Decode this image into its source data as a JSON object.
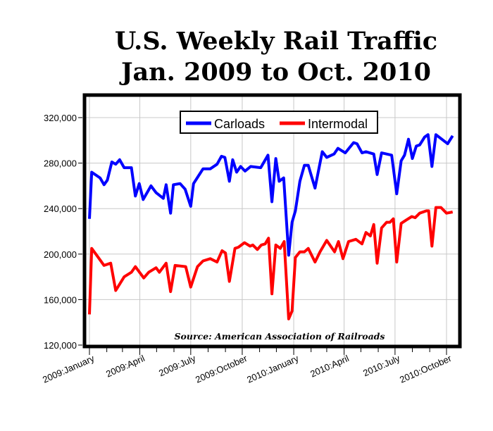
{
  "chart_data": {
    "type": "line",
    "title_lines": [
      "U.S. Weekly Rail Traffic",
      "Jan. 2009 to Oct. 2010"
    ],
    "xlabel": "",
    "ylabel": "",
    "ylim": [
      120000,
      340000
    ],
    "yticks": [
      120000,
      160000,
      200000,
      240000,
      280000,
      320000
    ],
    "ytick_labels": [
      "120,000",
      "160,000",
      "200,000",
      "240,000",
      "280,000",
      "320,000"
    ],
    "xticks": [
      "2009-01-01",
      "2009-04-01",
      "2009-07-01",
      "2009-10-01",
      "2010-01-01",
      "2010-04-01",
      "2010-07-01",
      "2010-10-01"
    ],
    "xtick_labels": [
      "2009:January",
      "2009:April",
      "2009:July",
      "2009:October",
      "2010:January",
      "2010:April",
      "2010:July",
      "2010:October"
    ],
    "grid": true,
    "legend_position": "top-center",
    "annotation": "Source: American Association of Railroads",
    "series": [
      {
        "name": "Carloads",
        "color": "#0000ff",
        "points": [
          [
            "2009-01-01",
            231000
          ],
          [
            "2009-01-05",
            272000
          ],
          [
            "2009-01-20",
            267000
          ],
          [
            "2009-01-27",
            261000
          ],
          [
            "2009-02-02",
            265000
          ],
          [
            "2009-02-10",
            281000
          ],
          [
            "2009-02-17",
            279000
          ],
          [
            "2009-02-24",
            283000
          ],
          [
            "2009-03-04",
            276000
          ],
          [
            "2009-03-17",
            276000
          ],
          [
            "2009-03-24",
            251000
          ],
          [
            "2009-03-31",
            262000
          ],
          [
            "2009-04-07",
            248000
          ],
          [
            "2009-04-21",
            260000
          ],
          [
            "2009-04-30",
            254000
          ],
          [
            "2009-05-13",
            249000
          ],
          [
            "2009-05-18",
            261000
          ],
          [
            "2009-05-26",
            236000
          ],
          [
            "2009-05-31",
            261000
          ],
          [
            "2009-06-12",
            262000
          ],
          [
            "2009-06-21",
            257000
          ],
          [
            "2009-07-01",
            242000
          ],
          [
            "2009-07-06",
            262000
          ],
          [
            "2009-07-23",
            275000
          ],
          [
            "2009-08-05",
            275000
          ],
          [
            "2009-08-17",
            279000
          ],
          [
            "2009-08-25",
            286000
          ],
          [
            "2009-08-31",
            285000
          ],
          [
            "2009-09-08",
            264000
          ],
          [
            "2009-09-14",
            283000
          ],
          [
            "2009-09-21",
            272000
          ],
          [
            "2009-09-28",
            277000
          ],
          [
            "2009-10-06",
            273000
          ],
          [
            "2009-10-16",
            277000
          ],
          [
            "2009-11-03",
            276000
          ],
          [
            "2009-11-16",
            287000
          ],
          [
            "2009-11-23",
            246000
          ],
          [
            "2009-11-30",
            284000
          ],
          [
            "2009-12-06",
            264000
          ],
          [
            "2009-12-14",
            267000
          ],
          [
            "2009-12-23",
            199000
          ],
          [
            "2009-12-29",
            228000
          ],
          [
            "2010-01-04",
            238000
          ],
          [
            "2010-01-12",
            264000
          ],
          [
            "2010-01-20",
            278000
          ],
          [
            "2010-01-27",
            278000
          ],
          [
            "2010-02-08",
            258000
          ],
          [
            "2010-02-21",
            290000
          ],
          [
            "2010-03-01",
            285000
          ],
          [
            "2010-03-14",
            288000
          ],
          [
            "2010-03-21",
            293000
          ],
          [
            "2010-04-03",
            289000
          ],
          [
            "2010-04-18",
            298000
          ],
          [
            "2010-04-24",
            297000
          ],
          [
            "2010-05-03",
            289000
          ],
          [
            "2010-05-10",
            290000
          ],
          [
            "2010-05-24",
            288000
          ],
          [
            "2010-05-30",
            270000
          ],
          [
            "2010-06-07",
            289000
          ],
          [
            "2010-06-25",
            287000
          ],
          [
            "2010-07-04",
            253000
          ],
          [
            "2010-07-12",
            282000
          ],
          [
            "2010-07-18",
            287000
          ],
          [
            "2010-07-25",
            301000
          ],
          [
            "2010-08-01",
            284000
          ],
          [
            "2010-08-08",
            295000
          ],
          [
            "2010-08-14",
            296000
          ],
          [
            "2010-08-23",
            303000
          ],
          [
            "2010-08-29",
            305000
          ],
          [
            "2010-09-05",
            277000
          ],
          [
            "2010-09-12",
            305000
          ],
          [
            "2010-10-03",
            297000
          ],
          [
            "2010-10-12",
            304000
          ]
        ]
      },
      {
        "name": "Intermodal",
        "color": "#ff0000",
        "points": [
          [
            "2009-01-01",
            147000
          ],
          [
            "2009-01-05",
            205000
          ],
          [
            "2009-01-14",
            199000
          ],
          [
            "2009-01-27",
            190000
          ],
          [
            "2009-02-08",
            192000
          ],
          [
            "2009-02-17",
            168000
          ],
          [
            "2009-03-04",
            180000
          ],
          [
            "2009-03-17",
            184000
          ],
          [
            "2009-03-24",
            189000
          ],
          [
            "2009-04-08",
            179000
          ],
          [
            "2009-04-17",
            184000
          ],
          [
            "2009-04-30",
            188000
          ],
          [
            "2009-05-06",
            184000
          ],
          [
            "2009-05-18",
            192000
          ],
          [
            "2009-05-26",
            167000
          ],
          [
            "2009-06-03",
            190000
          ],
          [
            "2009-06-22",
            189000
          ],
          [
            "2009-07-01",
            171000
          ],
          [
            "2009-07-13",
            189000
          ],
          [
            "2009-07-23",
            194000
          ],
          [
            "2009-08-05",
            196000
          ],
          [
            "2009-08-17",
            193000
          ],
          [
            "2009-08-26",
            203000
          ],
          [
            "2009-09-01",
            201000
          ],
          [
            "2009-09-08",
            176000
          ],
          [
            "2009-09-18",
            205000
          ],
          [
            "2009-09-24",
            206000
          ],
          [
            "2009-10-05",
            210000
          ],
          [
            "2009-10-15",
            207000
          ],
          [
            "2009-10-20",
            208000
          ],
          [
            "2009-10-28",
            204000
          ],
          [
            "2009-11-04",
            208000
          ],
          [
            "2009-11-11",
            209000
          ],
          [
            "2009-11-17",
            214000
          ],
          [
            "2009-11-23",
            165000
          ],
          [
            "2009-11-30",
            208000
          ],
          [
            "2009-12-08",
            205000
          ],
          [
            "2009-12-15",
            211000
          ],
          [
            "2009-12-23",
            143000
          ],
          [
            "2009-12-29",
            150000
          ],
          [
            "2010-01-04",
            197000
          ],
          [
            "2010-01-12",
            202000
          ],
          [
            "2010-01-20",
            202000
          ],
          [
            "2010-01-27",
            205000
          ],
          [
            "2010-02-08",
            193000
          ],
          [
            "2010-02-17",
            202000
          ],
          [
            "2010-03-01",
            212000
          ],
          [
            "2010-03-15",
            202000
          ],
          [
            "2010-03-22",
            211000
          ],
          [
            "2010-03-30",
            196000
          ],
          [
            "2010-04-09",
            211000
          ],
          [
            "2010-04-22",
            213000
          ],
          [
            "2010-05-03",
            209000
          ],
          [
            "2010-05-10",
            219000
          ],
          [
            "2010-05-18",
            216000
          ],
          [
            "2010-05-24",
            226000
          ],
          [
            "2010-05-30",
            192000
          ],
          [
            "2010-06-07",
            223000
          ],
          [
            "2010-06-16",
            228000
          ],
          [
            "2010-06-22",
            228000
          ],
          [
            "2010-06-28",
            231000
          ],
          [
            "2010-07-04",
            193000
          ],
          [
            "2010-07-12",
            227000
          ],
          [
            "2010-07-21",
            230000
          ],
          [
            "2010-07-31",
            233000
          ],
          [
            "2010-08-06",
            232000
          ],
          [
            "2010-08-14",
            236000
          ],
          [
            "2010-08-26",
            238000
          ],
          [
            "2010-08-30",
            238000
          ],
          [
            "2010-09-05",
            207000
          ],
          [
            "2010-09-12",
            241000
          ],
          [
            "2010-09-21",
            241000
          ],
          [
            "2010-10-01",
            236000
          ],
          [
            "2010-10-12",
            237000
          ]
        ]
      }
    ]
  }
}
